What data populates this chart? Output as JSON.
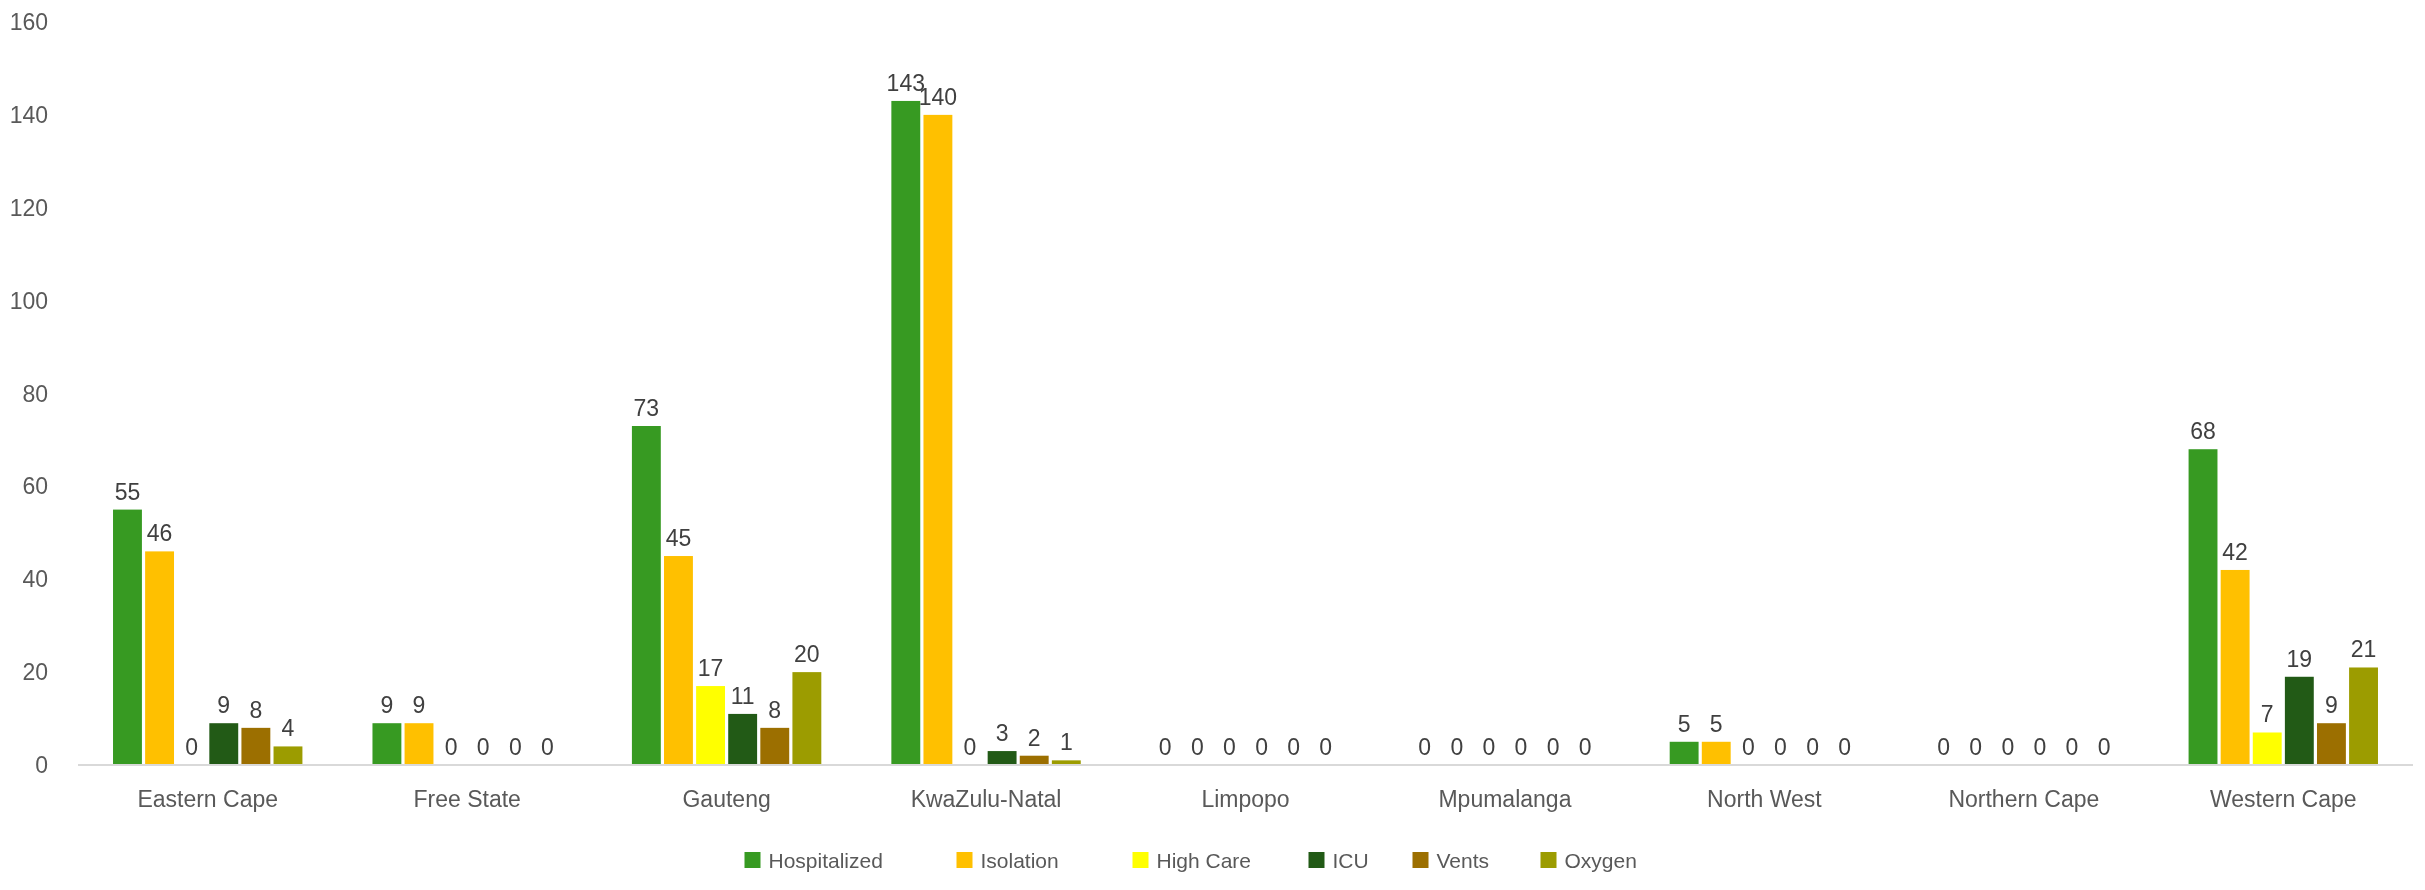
{
  "chart_data": {
    "type": "bar",
    "categories": [
      "Eastern Cape",
      "Free State",
      "Gauteng",
      "KwaZulu-Natal",
      "Limpopo",
      "Mpumalanga",
      "North West",
      "Northern Cape",
      "Western Cape"
    ],
    "series": [
      {
        "name": "Hospitalized",
        "color": "#379a22",
        "values": [
          55,
          9,
          73,
          143,
          0,
          0,
          5,
          0,
          68
        ]
      },
      {
        "name": "Isolation",
        "color": "#ffc000",
        "values": [
          46,
          9,
          45,
          140,
          0,
          0,
          5,
          0,
          42
        ]
      },
      {
        "name": "High Care",
        "color": "#ffff00",
        "values": [
          0,
          0,
          17,
          0,
          0,
          0,
          0,
          0,
          7
        ]
      },
      {
        "name": "ICU",
        "color": "#225a16",
        "values": [
          9,
          0,
          11,
          3,
          0,
          0,
          0,
          0,
          19
        ]
      },
      {
        "name": "Vents",
        "color": "#9c6f00",
        "values": [
          8,
          0,
          8,
          2,
          0,
          0,
          0,
          0,
          9
        ]
      },
      {
        "name": "Oxygen",
        "color": "#9c9c00",
        "values": [
          4,
          0,
          20,
          1,
          0,
          0,
          0,
          0,
          21
        ]
      }
    ],
    "ylim": [
      0,
      160
    ],
    "yticks": [
      0,
      20,
      40,
      60,
      80,
      100,
      120,
      140,
      160
    ],
    "data_labels": true,
    "legend": "bottom"
  }
}
